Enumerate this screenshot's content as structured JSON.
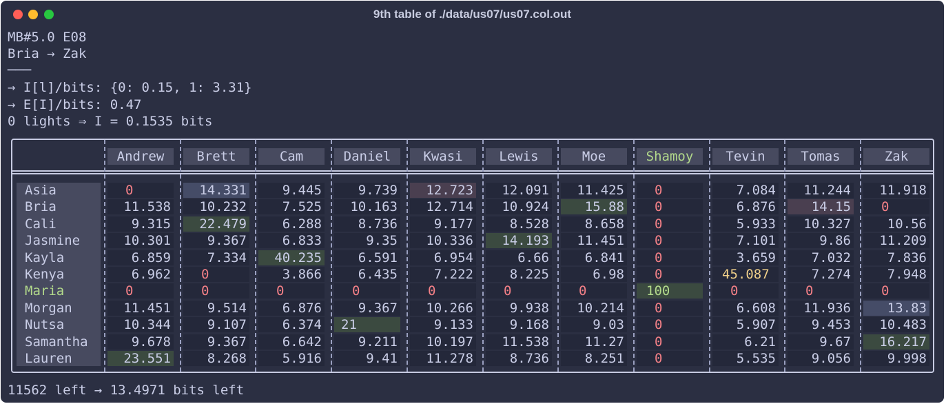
{
  "window": {
    "title": "9th table of ./data/us07/us07.col.out"
  },
  "header_lines": [
    "MB#5.0 E08",
    "Bria → Zak",
    "───",
    "→ I[l]/bits: {0: 0.15, 1: 3.31}",
    "→ E[I]/bits: 0.47",
    "0 lights ⇒ I = 0.1535 bits"
  ],
  "footer": "11562 left → 13.4971 bits left",
  "table": {
    "columns": [
      "Andrew",
      "Brett",
      "Cam",
      "Daniel",
      "Kwasi",
      "Lewis",
      "Moe",
      "Shamoy",
      "Tevin",
      "Tomas",
      "Zak"
    ],
    "rows": [
      "Asia",
      "Bria",
      "Cali",
      "Jasmine",
      "Kayla",
      "Kenya",
      "Maria",
      "Morgan",
      "Nutsa",
      "Samantha",
      "Lauren"
    ],
    "cells": [
      [
        "0",
        "14.331",
        "9.445",
        "9.739",
        "12.723",
        "12.091",
        "11.425",
        "0",
        "7.084",
        "11.244",
        "11.918"
      ],
      [
        "11.538",
        "10.232",
        "7.525",
        "10.163",
        "12.714",
        "10.924",
        "15.88",
        "0",
        "6.876",
        "14.15",
        "0"
      ],
      [
        "9.315",
        "22.479",
        "6.288",
        "8.736",
        "9.177",
        "8.528",
        "8.658",
        "0",
        "5.933",
        "10.327",
        "10.56"
      ],
      [
        "10.301",
        "9.367",
        "6.833",
        "9.35",
        "10.336",
        "14.193",
        "11.451",
        "0",
        "7.101",
        "9.86",
        "11.209"
      ],
      [
        "6.859",
        "7.334",
        "40.235",
        "6.591",
        "6.954",
        "6.66",
        "6.841",
        "0",
        "3.659",
        "7.032",
        "7.836"
      ],
      [
        "6.962",
        "0",
        "3.866",
        "6.435",
        "7.222",
        "8.225",
        "6.98",
        "0",
        "45.087",
        "7.274",
        "7.948"
      ],
      [
        "0",
        "0",
        "0",
        "0",
        "0",
        "0",
        "0",
        "100",
        "0",
        "0",
        "0"
      ],
      [
        "11.451",
        "9.514",
        "6.876",
        "9.367",
        "10.266",
        "9.938",
        "10.214",
        "0",
        "6.608",
        "11.936",
        "13.83"
      ],
      [
        "10.344",
        "9.107",
        "6.374",
        "21",
        "9.133",
        "9.168",
        "9.03",
        "0",
        "5.907",
        "9.453",
        "10.483"
      ],
      [
        "9.678",
        "9.367",
        "6.642",
        "9.211",
        "10.197",
        "11.538",
        "11.27",
        "0",
        "6.21",
        "9.67",
        "16.217"
      ],
      [
        "23.551",
        "8.268",
        "5.916",
        "9.41",
        "11.278",
        "8.736",
        "8.251",
        "0",
        "5.535",
        "9.056",
        "9.998"
      ]
    ],
    "highlights": {
      "green": [
        [
          1,
          6
        ],
        [
          2,
          1
        ],
        [
          3,
          5
        ],
        [
          4,
          2
        ],
        [
          8,
          3
        ],
        [
          9,
          10
        ],
        [
          10,
          0
        ]
      ],
      "blue": [
        [
          0,
          1
        ],
        [
          7,
          10
        ]
      ],
      "mauve": [
        [
          0,
          4
        ],
        [
          1,
          9
        ]
      ],
      "yellow": [
        [
          5,
          8
        ]
      ],
      "hundred": [
        [
          6,
          7
        ]
      ]
    },
    "highlighted_row": "Maria",
    "highlighted_column": "Shamoy",
    "colors": {
      "background": "#2b2f42",
      "text": "#c9cde6",
      "zero": "#f38087",
      "accent_green": "#b2d98b",
      "accent_yellow": "#f0d08a"
    }
  }
}
